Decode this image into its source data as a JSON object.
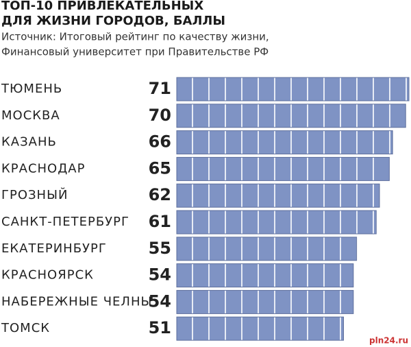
{
  "chart_data": {
    "type": "bar",
    "orientation": "horizontal",
    "title": [
      "ТОП-10 ПРИВЛЕКАТЕЛЬНЫХ",
      "ДЛЯ ЖИЗНИ ГОРОДОВ, БАЛЛЫ"
    ],
    "subtitle": [
      "Источник: Итоговый рейтинг по качеству жизни,",
      "Финансовый университет при Правительстве РФ"
    ],
    "categories": [
      "ТЮМЕНЬ",
      "МОСКВА",
      "КАЗАНЬ",
      "КРАСНОДАР",
      "ГРОЗНЫЙ",
      "САНКТ-ПЕТЕРБУРГ",
      "ЕКАТЕРИНБУРГ",
      "КРАСНОЯРСК",
      "НАБЕРЕЖНЫЕ ЧЕЛНЫ",
      "ТОМСК"
    ],
    "values": [
      71,
      70,
      66,
      65,
      62,
      61,
      55,
      54,
      54,
      51
    ],
    "color": "#7f93c4",
    "watermark": "pln24.ru"
  }
}
